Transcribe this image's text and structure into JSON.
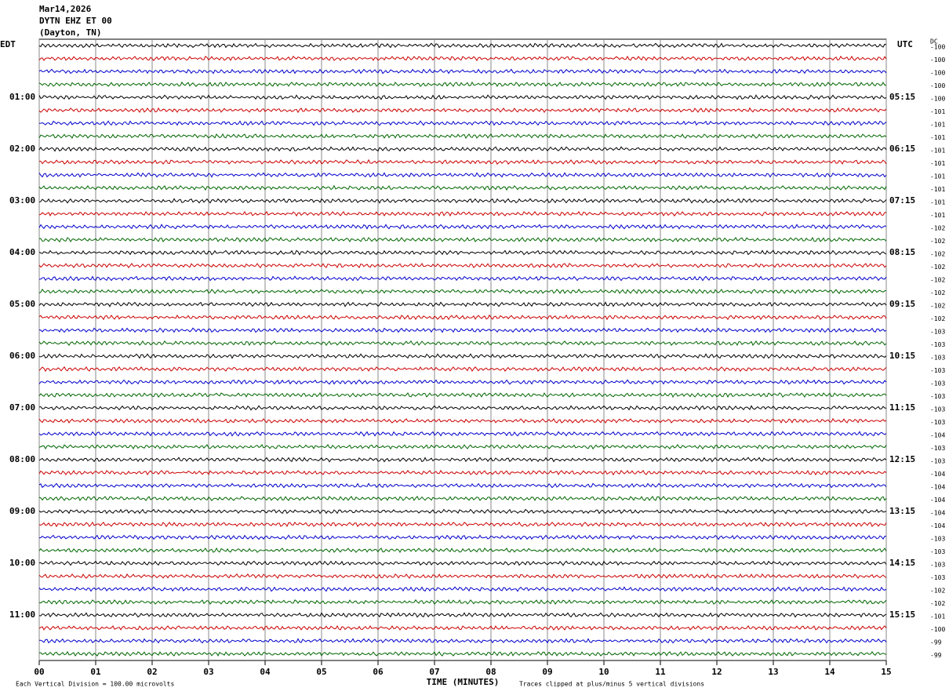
{
  "header": {
    "date": "Mar14,2026",
    "station": "DYTN EHZ ET 00",
    "location": "(Dayton, TN)"
  },
  "left_axis": {
    "title": "EDT",
    "labels": [
      "01:00",
      "02:00",
      "03:00",
      "04:00",
      "05:00",
      "06:00",
      "07:00",
      "08:00",
      "09:00",
      "10:00",
      "11:00"
    ]
  },
  "right_axis": {
    "title": "UTC",
    "labels": [
      "05:15",
      "06:15",
      "07:15",
      "08:15",
      "09:15",
      "10:15",
      "11:15",
      "12:15",
      "13:15",
      "14:15",
      "15:15"
    ]
  },
  "dc": {
    "title": "DC",
    "values": [
      -100,
      -100,
      -100,
      -100,
      -100,
      -101,
      -101,
      -101,
      -101,
      -101,
      -101,
      -101,
      -101,
      -101,
      -102,
      -102,
      -102,
      -102,
      -102,
      -102,
      -102,
      -102,
      -103,
      -103,
      -103,
      -103,
      -103,
      -103,
      -103,
      -103,
      -104,
      -103,
      -103,
      -104,
      -104,
      -104,
      -104,
      -104,
      -103,
      -103,
      -103,
      -103,
      -102,
      -102,
      -101,
      -100,
      -99,
      -99
    ]
  },
  "x_axis": {
    "title": "TIME (MINUTES)",
    "lim": [
      0,
      15
    ],
    "ticks": [
      {
        "value": 0,
        "label": "00"
      },
      {
        "value": 1,
        "label": "01"
      },
      {
        "value": 2,
        "label": "02"
      },
      {
        "value": 3,
        "label": "03"
      },
      {
        "value": 4,
        "label": "04"
      },
      {
        "value": 5,
        "label": "05"
      },
      {
        "value": 6,
        "label": "06"
      },
      {
        "value": 7,
        "label": "07"
      },
      {
        "value": 8,
        "label": "08"
      },
      {
        "value": 9,
        "label": "09"
      },
      {
        "value": 10,
        "label": "10"
      },
      {
        "value": 11,
        "label": "11"
      },
      {
        "value": 12,
        "label": "12"
      },
      {
        "value": 13,
        "label": "13"
      },
      {
        "value": 14,
        "label": "14"
      },
      {
        "value": 15,
        "label": "15"
      }
    ]
  },
  "footer": {
    "scale": "Each Vertical Division =  100.00 microvolts",
    "clip": "Traces clipped at plus/minus 5 vertical divisions"
  },
  "trace_colors": [
    "#000000",
    "#cc0000",
    "#0000cc",
    "#006600"
  ]
}
